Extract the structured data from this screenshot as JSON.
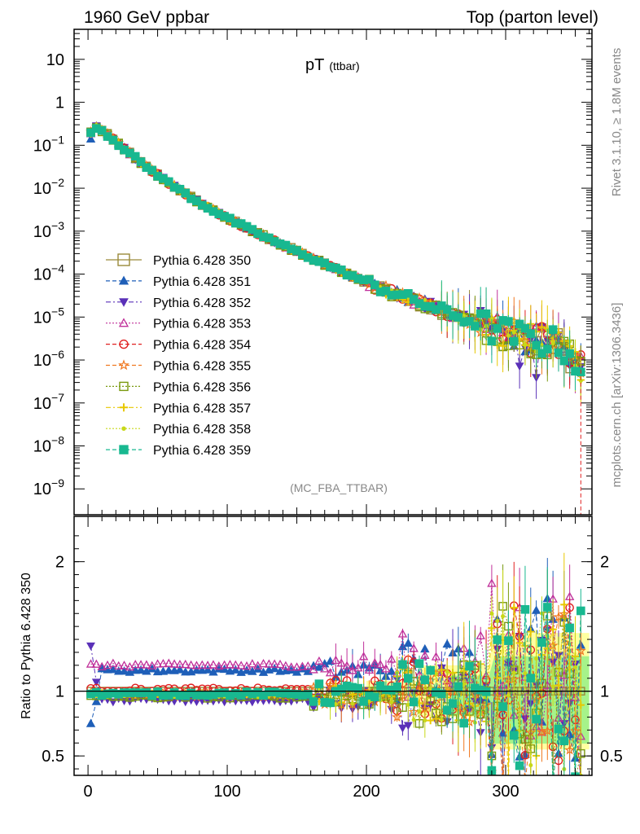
{
  "header": {
    "left": "1960 GeV ppbar",
    "right": "Top (parton level)"
  },
  "side_labels": {
    "rivet": "Rivet 3.1.10, ≥ 1.8M events",
    "mcplots": "mcplots.cern.ch [arXiv:1306.3436]"
  },
  "watermark": "(MC_FBA_TTBAR)",
  "chart_data": [
    {
      "type": "scatter",
      "panel": "main",
      "title": "pT",
      "title_sub": "(ttbar)",
      "yscale": "log",
      "xlim": [
        -10,
        362
      ],
      "ylim": [
        2.5e-10,
        50
      ],
      "yticks": [
        {
          "v": 1e-09,
          "base": "10",
          "exp": "−9"
        },
        {
          "v": 1e-08,
          "base": "10",
          "exp": "−8"
        },
        {
          "v": 1e-07,
          "base": "10",
          "exp": "−7"
        },
        {
          "v": 1e-06,
          "base": "10",
          "exp": "−6"
        },
        {
          "v": 1e-05,
          "base": "10",
          "exp": "−5"
        },
        {
          "v": 0.0001,
          "base": "10",
          "exp": "−4"
        },
        {
          "v": 0.001,
          "base": "10",
          "exp": "−3"
        },
        {
          "v": 0.01,
          "base": "10",
          "exp": "−2"
        },
        {
          "v": 0.1,
          "base": "10",
          "exp": "−1"
        },
        {
          "v": 1,
          "base": "1",
          "exp": ""
        },
        {
          "v": 10,
          "base": "10",
          "exp": ""
        }
      ],
      "legend": "upper-left",
      "reference_curve": {
        "x": [
          2,
          6,
          10,
          20,
          40,
          60,
          80,
          100,
          120,
          140,
          160,
          180,
          200,
          220,
          240,
          260,
          280,
          300,
          320,
          340,
          356
        ],
        "y": [
          0.2,
          0.27,
          0.22,
          0.12,
          0.035,
          0.012,
          0.0046,
          0.002,
          0.00095,
          0.00047,
          0.00024,
          0.000125,
          6.5e-05,
          3.6e-05,
          2.1e-05,
          1.2e-05,
          7e-06,
          4.2e-06,
          3e-06,
          2.2e-06,
          6e-07
        ]
      },
      "series": [
        {
          "name": "Pythia 6.428 350",
          "color": "#9a8a3a",
          "marker": "square-open",
          "dash": "solid"
        },
        {
          "name": "Pythia 6.428 351",
          "color": "#1f5fb8",
          "marker": "triangle-up",
          "dash": "dashed"
        },
        {
          "name": "Pythia 6.428 352",
          "color": "#5a30b8",
          "marker": "triangle-down",
          "dash": "dashdot"
        },
        {
          "name": "Pythia 6.428 353",
          "color": "#c0309a",
          "marker": "triangle-open",
          "dash": "dotted"
        },
        {
          "name": "Pythia 6.428 354",
          "color": "#e02020",
          "marker": "circle-open",
          "dash": "dashed"
        },
        {
          "name": "Pythia 6.428 355",
          "color": "#f07820",
          "marker": "star",
          "dash": "dashed"
        },
        {
          "name": "Pythia 6.428 356",
          "color": "#7a9a10",
          "marker": "square-open",
          "dash": "dotted"
        },
        {
          "name": "Pythia 6.428 357",
          "color": "#e8c800",
          "marker": "cross",
          "dash": "dashdot"
        },
        {
          "name": "Pythia 6.428 358",
          "color": "#c8d818",
          "marker": "dot",
          "dash": "dotted"
        },
        {
          "name": "Pythia 6.428 359",
          "color": "#18b890",
          "marker": "square",
          "dash": "dashed"
        }
      ]
    },
    {
      "type": "scatter",
      "panel": "ratio",
      "ylabel": "Ratio to Pythia 6.428 350",
      "xlim": [
        -10,
        362
      ],
      "ylim": [
        0.35,
        2.35
      ],
      "yticks": [
        {
          "v": 0.5,
          "label": "0.5"
        },
        {
          "v": 1,
          "label": "1"
        },
        {
          "v": 2,
          "label": "2"
        }
      ],
      "xticks": [
        {
          "v": 0,
          "label": "0"
        },
        {
          "v": 100,
          "label": "100"
        },
        {
          "v": 200,
          "label": "200"
        },
        {
          "v": 300,
          "label": "300"
        }
      ],
      "series_levels": {
        "Pythia 6.428 350": 1.0,
        "Pythia 6.428 351": 1.16,
        "Pythia 6.428 352": 0.93,
        "Pythia 6.428 353": 1.2,
        "Pythia 6.428 354": 1.01,
        "Pythia 6.428 355": 0.97,
        "Pythia 6.428 356": 0.96,
        "Pythia 6.428 357": 0.98,
        "Pythia 6.428 358": 0.97,
        "Pythia 6.428 359": 0.98
      },
      "low_pt_points": {
        "Pythia 6.428 351": [
          0.75,
          0.92
        ],
        "Pythia 6.428 352": [
          1.35,
          1.07
        ]
      }
    }
  ]
}
